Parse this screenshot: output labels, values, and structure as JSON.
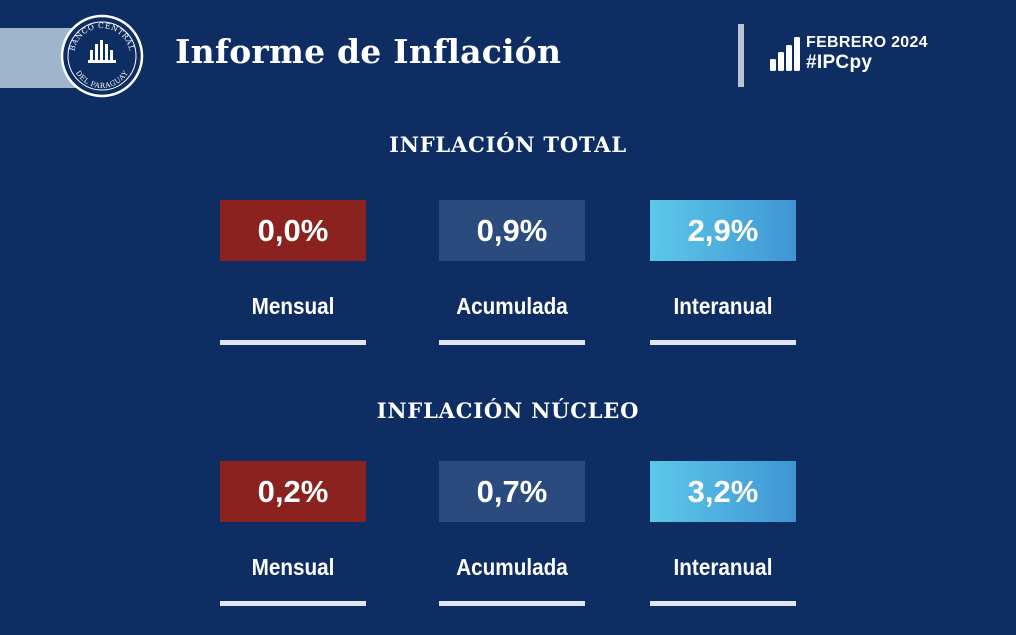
{
  "header": {
    "logo_text_top": "BANCO CENTRAL",
    "logo_text_bottom": "DEL PARAGUAY",
    "title": "Informe de Inflación",
    "period": "FEBRERO 2024",
    "hashtag": "#IPCpy"
  },
  "sections": [
    {
      "title": "INFLACIÓN TOTAL",
      "cards": [
        {
          "value": "0,0%",
          "label": "Mensual",
          "color": "#8b2220"
        },
        {
          "value": "0,9%",
          "label": "Acumulada",
          "color": "#2b4a7e"
        },
        {
          "value": "2,9%",
          "label": "Interanual",
          "color": "#4fb3e0"
        }
      ]
    },
    {
      "title": "INFLACIÓN NÚCLEO",
      "cards": [
        {
          "value": "0,2%",
          "label": "Mensual",
          "color": "#8b2220"
        },
        {
          "value": "0,7%",
          "label": "Acumulada",
          "color": "#2b4a7e"
        },
        {
          "value": "3,2%",
          "label": "Interanual",
          "color": "#4fb3e0"
        }
      ]
    }
  ],
  "colors": {
    "background": "#0e2d63",
    "accent_band": "#9fb5cc"
  }
}
